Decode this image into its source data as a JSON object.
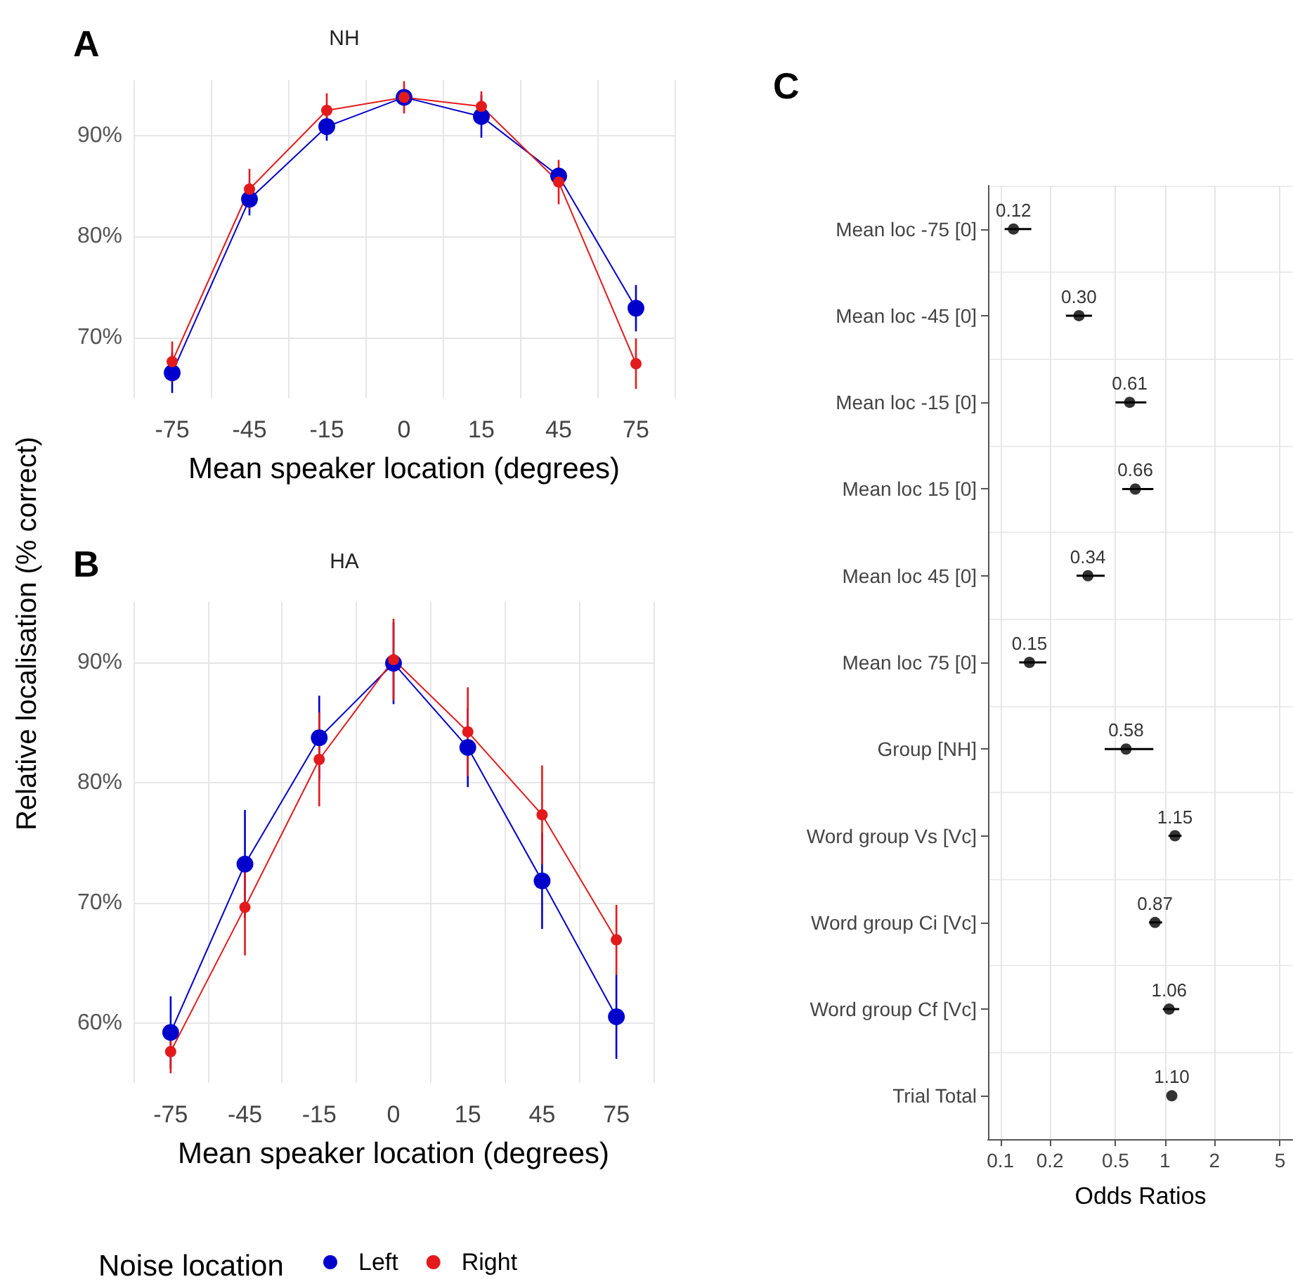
{
  "chart_data": [
    {
      "type": "line",
      "title": "NH",
      "annotations": [
        "A"
      ],
      "categories": [
        "-75",
        "-45",
        "-15",
        "0",
        "15",
        "45",
        "75"
      ],
      "xlabel": "Mean speaker location (degrees)",
      "ylabel": "Relative localisation (% correct)",
      "ylim": [
        64,
        95.5
      ],
      "yticks": [
        {
          "value": 70,
          "label": "70%"
        },
        {
          "value": 80,
          "label": "80%"
        },
        {
          "value": 90,
          "label": "90%"
        }
      ],
      "grid": true,
      "marker": "circle",
      "legend": false,
      "series": [
        {
          "color": "#0000cc",
          "values": [
            66.5,
            83.7,
            90.9,
            93.8,
            91.9,
            86.0,
            72.9
          ],
          "errors": [
            2,
            1.6,
            1.4,
            null,
            2.1,
            null,
            2.3
          ]
        },
        {
          "color": "#e31a1c",
          "values": [
            67.6,
            84.7,
            92.5,
            93.8,
            92.9,
            85.4,
            67.4
          ],
          "errors": [
            2,
            2,
            1.7,
            1.6,
            1.5,
            2.2,
            2.5
          ]
        }
      ]
    },
    {
      "type": "line",
      "title": "HA",
      "annotations": [
        "B"
      ],
      "categories": [
        "-75",
        "-45",
        "-15",
        "0",
        "15",
        "45",
        "75"
      ],
      "xlabel": "Mean speaker location (degrees)",
      "ylim": [
        55,
        95
      ],
      "yticks": [
        {
          "value": 60,
          "label": "60%"
        },
        {
          "value": 70,
          "label": "70%"
        },
        {
          "value": 80,
          "label": "80%"
        },
        {
          "value": 90,
          "label": "90%"
        }
      ],
      "grid": true,
      "marker": "circle",
      "legend": "bottom",
      "legend_title": "Noise location",
      "series": [
        {
          "name": "Left",
          "color": "#0000cc",
          "values": [
            59.2,
            73.2,
            83.7,
            89.9,
            82.9,
            71.8,
            60.5
          ],
          "errors": [
            3,
            4.5,
            3.5,
            3.4,
            3.3,
            4,
            3.5
          ]
        },
        {
          "name": "Right",
          "color": "#e31a1c",
          "values": [
            57.6,
            69.6,
            81.9,
            90.2,
            84.2,
            77.3,
            66.9
          ],
          "errors": [
            1.8,
            4,
            3.9,
            3.4,
            3.7,
            4.1,
            2.9
          ]
        }
      ]
    },
    {
      "type": "scatter",
      "orientation": "horizontal",
      "annotations": [
        "C"
      ],
      "categories": [
        "Mean loc -75 [0]",
        "Mean loc -45 [0]",
        "Mean loc -15 [0]",
        "Mean loc 15 [0]",
        "Mean loc 45 [0]",
        "Mean loc 75 [0]",
        "Group [NH]",
        "Word group Vs [Vc]",
        "Word group Ci [Vc]",
        "Word group Cf [Vc]",
        "Trial Total"
      ],
      "xlabel": "Odds Ratios",
      "xlim": [
        0.084,
        6
      ],
      "xticks": [
        0.1,
        0.2,
        0.5,
        1,
        2,
        5
      ],
      "log": "x",
      "grid": true,
      "marker": "circle",
      "color": "#000000",
      "values": [
        0.12,
        0.3,
        0.61,
        0.66,
        0.34,
        0.15,
        0.58,
        1.15,
        0.87,
        1.06,
        1.1
      ],
      "errors": [
        [
          0.106,
          0.154
        ],
        [
          0.25,
          0.36
        ],
        [
          0.5,
          0.77
        ],
        [
          0.55,
          0.85
        ],
        [
          0.29,
          0.43
        ],
        [
          0.13,
          0.19
        ],
        [
          0.43,
          0.85
        ],
        [
          1.05,
          1.26
        ],
        [
          0.8,
          0.96
        ],
        [
          0.97,
          1.22
        ],
        null
      ],
      "value_labels": [
        "0.12",
        "0.30",
        "0.61",
        "0.66",
        "0.34",
        "0.15",
        "0.58",
        "1.15",
        "0.87",
        "1.06",
        "1.10"
      ]
    }
  ]
}
